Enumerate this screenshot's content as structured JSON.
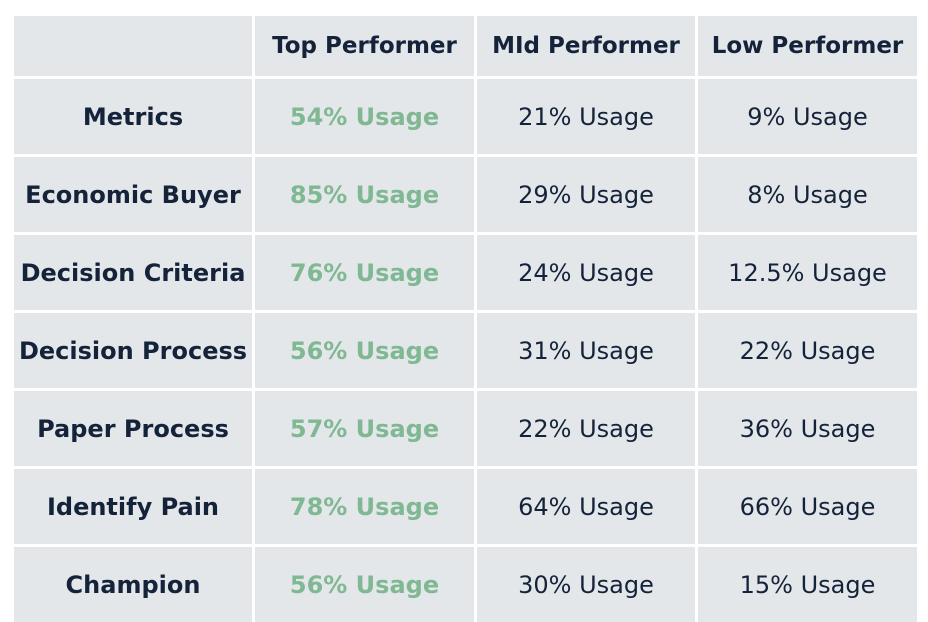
{
  "table": {
    "headers": [
      "",
      "Top Performer",
      "MId Performer",
      "Low Performer"
    ],
    "rows": [
      {
        "label": "Metrics",
        "top": "54% Usage",
        "mid": "21% Usage",
        "low": "9% Usage"
      },
      {
        "label": "Economic Buyer",
        "top": "85% Usage",
        "mid": "29% Usage",
        "low": "8% Usage"
      },
      {
        "label": "Decision Criteria",
        "top": "76% Usage",
        "mid": "24% Usage",
        "low": "12.5% Usage"
      },
      {
        "label": "Decision Process",
        "top": "56% Usage",
        "mid": "31% Usage",
        "low": "22% Usage"
      },
      {
        "label": "Paper Process",
        "top": "57% Usage",
        "mid": "22% Usage",
        "low": "36% Usage"
      },
      {
        "label": "Identify Pain",
        "top": "78% Usage",
        "mid": "64% Usage",
        "low": "66% Usage"
      },
      {
        "label": "Champion",
        "top": "56% Usage",
        "mid": "30% Usage",
        "low": "15% Usage"
      }
    ]
  },
  "colors": {
    "cell_background": "#e4e7ea",
    "text": "#15233a",
    "top_performer_value": "#7fb892",
    "grid_lines": "#ffffff"
  }
}
